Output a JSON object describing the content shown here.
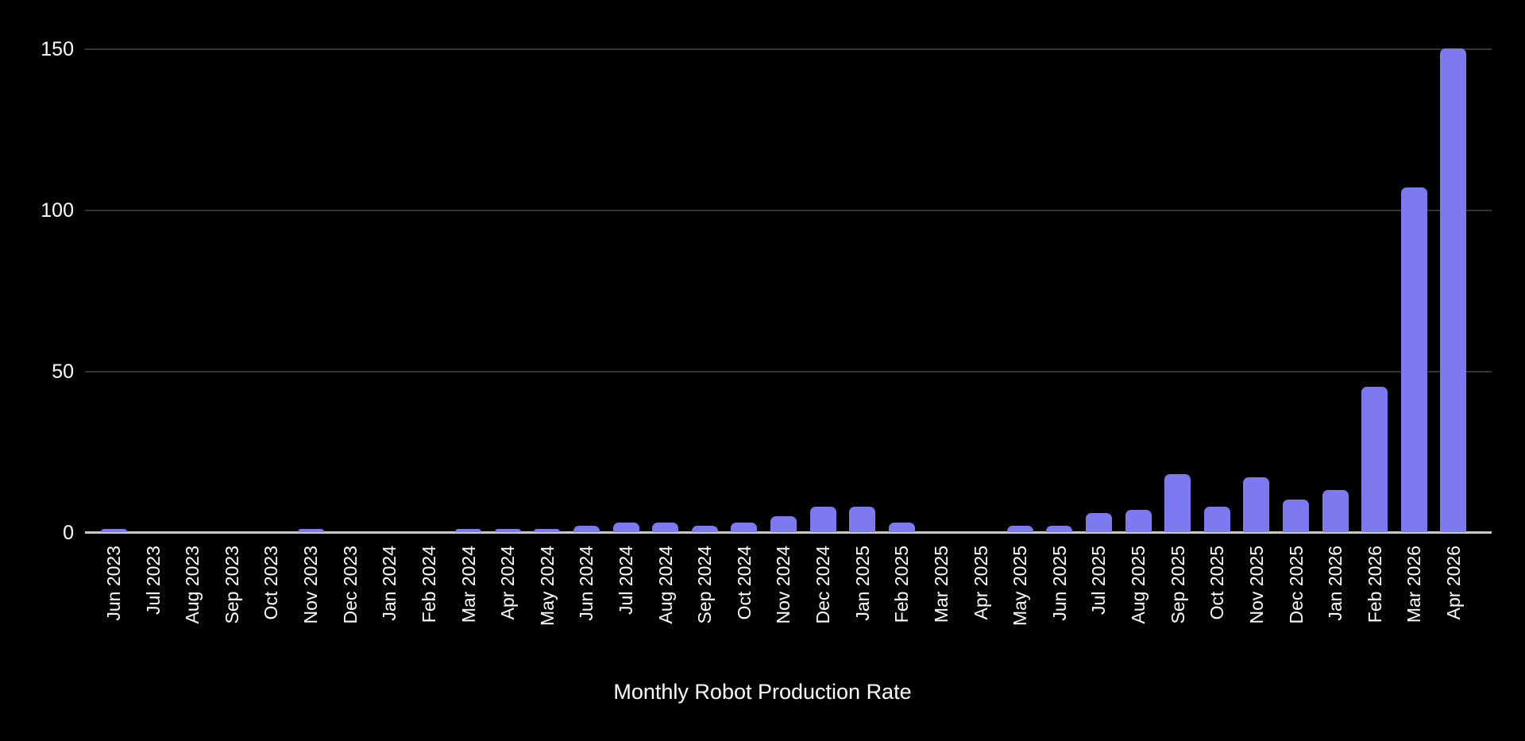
{
  "chart_data": {
    "type": "bar",
    "title": "Monthly Robot Production Rate",
    "xlabel": "",
    "ylabel": "",
    "ylim": [
      0,
      150
    ],
    "yticks": [
      0,
      50,
      100,
      150
    ],
    "grid": "horizontal-gridlines-on-black",
    "legend": "none",
    "categories": [
      "Jun 2023",
      "Jul 2023",
      "Aug 2023",
      "Sep 2023",
      "Oct 2023",
      "Nov 2023",
      "Dec 2023",
      "Jan 2024",
      "Feb 2024",
      "Mar 2024",
      "Apr 2024",
      "May 2024",
      "Jun 2024",
      "Jul 2024",
      "Aug 2024",
      "Sep 2024",
      "Oct 2024",
      "Nov 2024",
      "Dec 2024",
      "Jan 2025",
      "Feb 2025",
      "Mar 2025",
      "Apr 2025",
      "May 2025",
      "Jun 2025",
      "Jul 2025",
      "Aug 2025",
      "Sep 2025",
      "Oct 2025",
      "Nov 2025",
      "Dec 2025",
      "Jan 2026",
      "Feb 2026",
      "Mar 2026",
      "Apr 2026"
    ],
    "values": [
      1,
      0,
      0,
      0,
      0,
      1,
      0,
      0,
      0,
      1,
      1,
      1,
      2,
      3,
      3,
      2,
      3,
      5,
      8,
      8,
      3,
      0,
      0,
      2,
      2,
      6,
      7,
      18,
      8,
      17,
      10,
      13,
      45,
      107,
      150
    ],
    "colors": {
      "background": "#000000",
      "bar": "#7c7aee",
      "gridline": "#333333",
      "axis_line": "#c9c9c9",
      "label_text": "#ffffff"
    }
  }
}
